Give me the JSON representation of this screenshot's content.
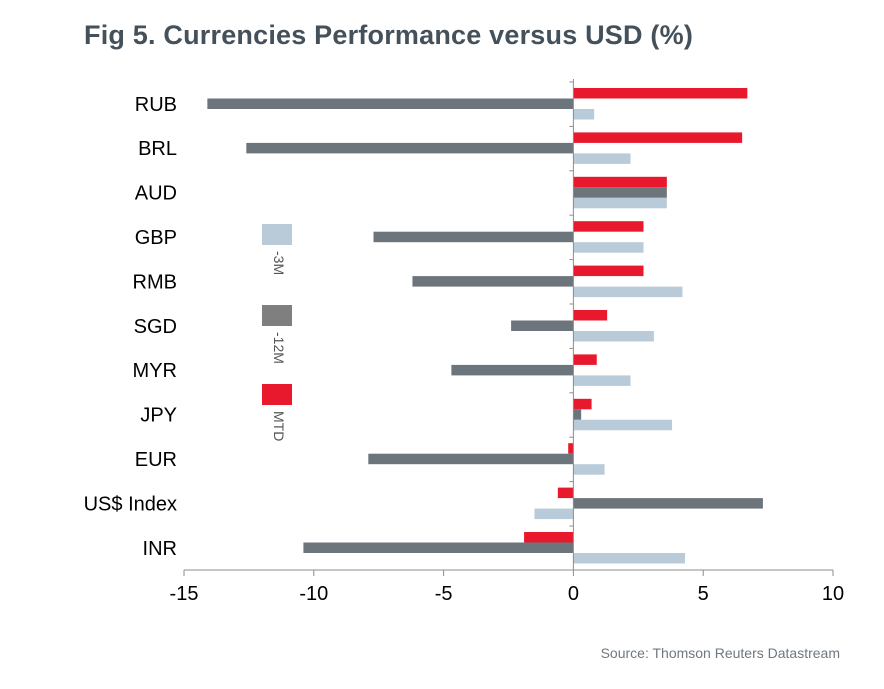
{
  "chart_data": {
    "type": "bar",
    "orientation": "horizontal",
    "title": "Fig 5. Currencies Performance versus USD (%)",
    "source": "Source: Thomson Reuters Datastream",
    "categories": [
      "RUB",
      "BRL",
      "AUD",
      "GBP",
      "RMB",
      "SGD",
      "MYR",
      "JPY",
      "EUR",
      "US$ Index",
      "INR"
    ],
    "series": [
      {
        "name": "MTD",
        "color": "#e8192c",
        "values": [
          6.7,
          6.5,
          3.6,
          2.7,
          2.7,
          1.3,
          0.9,
          0.7,
          -0.2,
          -0.6,
          -1.9
        ]
      },
      {
        "name": "-12M",
        "color": "#6d757c",
        "values": [
          -14.1,
          -12.6,
          3.6,
          -7.7,
          -6.2,
          -2.4,
          -4.7,
          0.3,
          -7.9,
          7.3,
          -10.4
        ]
      },
      {
        "name": "-3M",
        "color": "#b9cbd8",
        "values": [
          0.8,
          2.2,
          3.6,
          2.7,
          4.2,
          3.1,
          2.2,
          3.8,
          1.2,
          -1.5,
          4.3
        ]
      }
    ],
    "xlim": [
      -15,
      10
    ],
    "xticks": [
      -15,
      -10,
      -5,
      0,
      5,
      10
    ],
    "xtick_labels": [
      "-15",
      "-10",
      "-5",
      "0",
      "5",
      "10"
    ],
    "legend": {
      "placement": "left-inside",
      "entries": [
        {
          "label": "-3M",
          "color": "#b9cbd8"
        },
        {
          "label": "-12M",
          "color": "#7f7f7f"
        },
        {
          "label": "MTD",
          "color": "#e8192c"
        }
      ]
    },
    "grid": false
  }
}
